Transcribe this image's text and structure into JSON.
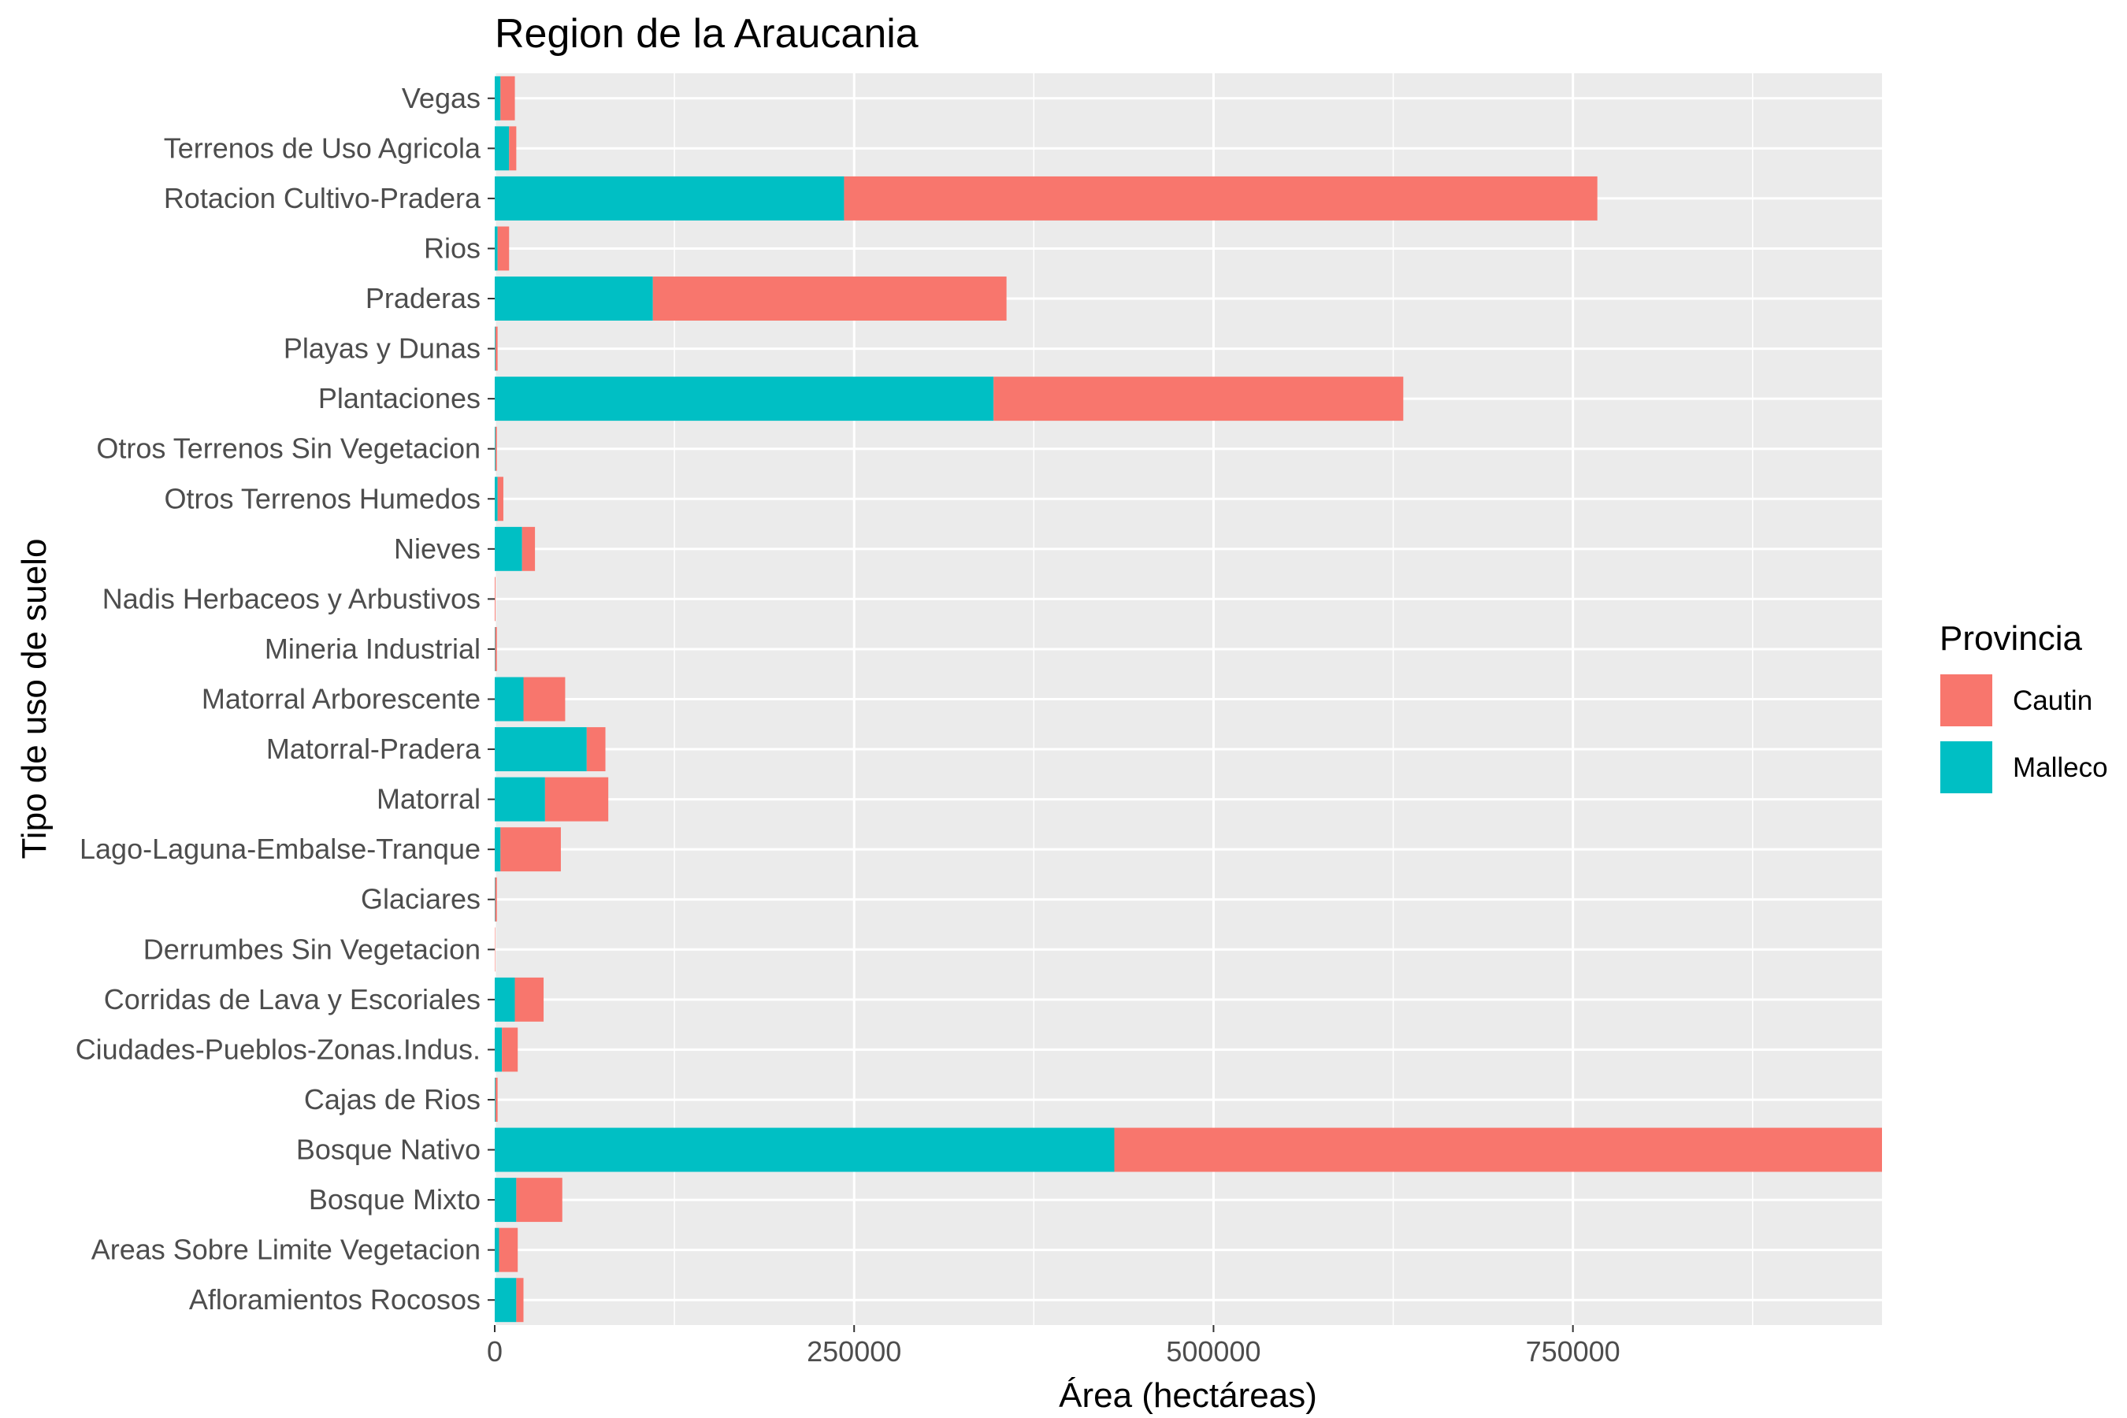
{
  "chart_data": {
    "type": "bar",
    "orientation": "horizontal",
    "stacked": true,
    "title": "Region de la Araucania",
    "xlabel": "Área (hectáreas)",
    "ylabel": "Tipo de uso de suelo",
    "xlim": [
      0,
      965000
    ],
    "xticks": [
      0,
      250000,
      500000,
      750000
    ],
    "xtick_labels": [
      "0",
      "250000",
      "500000",
      "750000"
    ],
    "grid": true,
    "legend_position": "right",
    "legend_title": "Provincia",
    "categories": [
      "Vegas",
      "Terrenos de Uso Agricola",
      "Rotacion Cultivo-Pradera",
      "Rios",
      "Praderas",
      "Playas y Dunas",
      "Plantaciones",
      "Otros Terrenos Sin Vegetacion",
      "Otros Terrenos Humedos",
      "Nieves",
      "Nadis Herbaceos y Arbustivos",
      "Mineria Industrial",
      "Matorral Arborescente",
      "Matorral-Pradera",
      "Matorral",
      "Lago-Laguna-Embalse-Tranque",
      "Glaciares",
      "Derrumbes Sin Vegetacion",
      "Corridas de Lava y Escoriales",
      "Ciudades-Pueblos-Zonas.Indus.",
      "Cajas de Rios",
      "Bosque Nativo",
      "Bosque Mixto",
      "Areas Sobre Limite Vegetacion",
      "Afloramientos Rocosos"
    ],
    "series": [
      {
        "name": "Malleco",
        "color": "#00BFC4",
        "values": [
          4000,
          10000,
          243000,
          2000,
          110000,
          500,
          347000,
          500,
          2000,
          19000,
          0,
          300,
          20000,
          64000,
          35000,
          4000,
          300,
          0,
          14000,
          5000,
          500,
          431000,
          15000,
          3000,
          15000
        ]
      },
      {
        "name": "Cautin",
        "color": "#F8766D",
        "values": [
          10000,
          5000,
          524000,
          8000,
          246000,
          1500,
          285000,
          1000,
          4000,
          9000,
          500,
          1200,
          29000,
          13000,
          44000,
          42000,
          1200,
          300,
          20000,
          11000,
          1500,
          534000,
          32000,
          13000,
          5000
        ]
      }
    ]
  }
}
